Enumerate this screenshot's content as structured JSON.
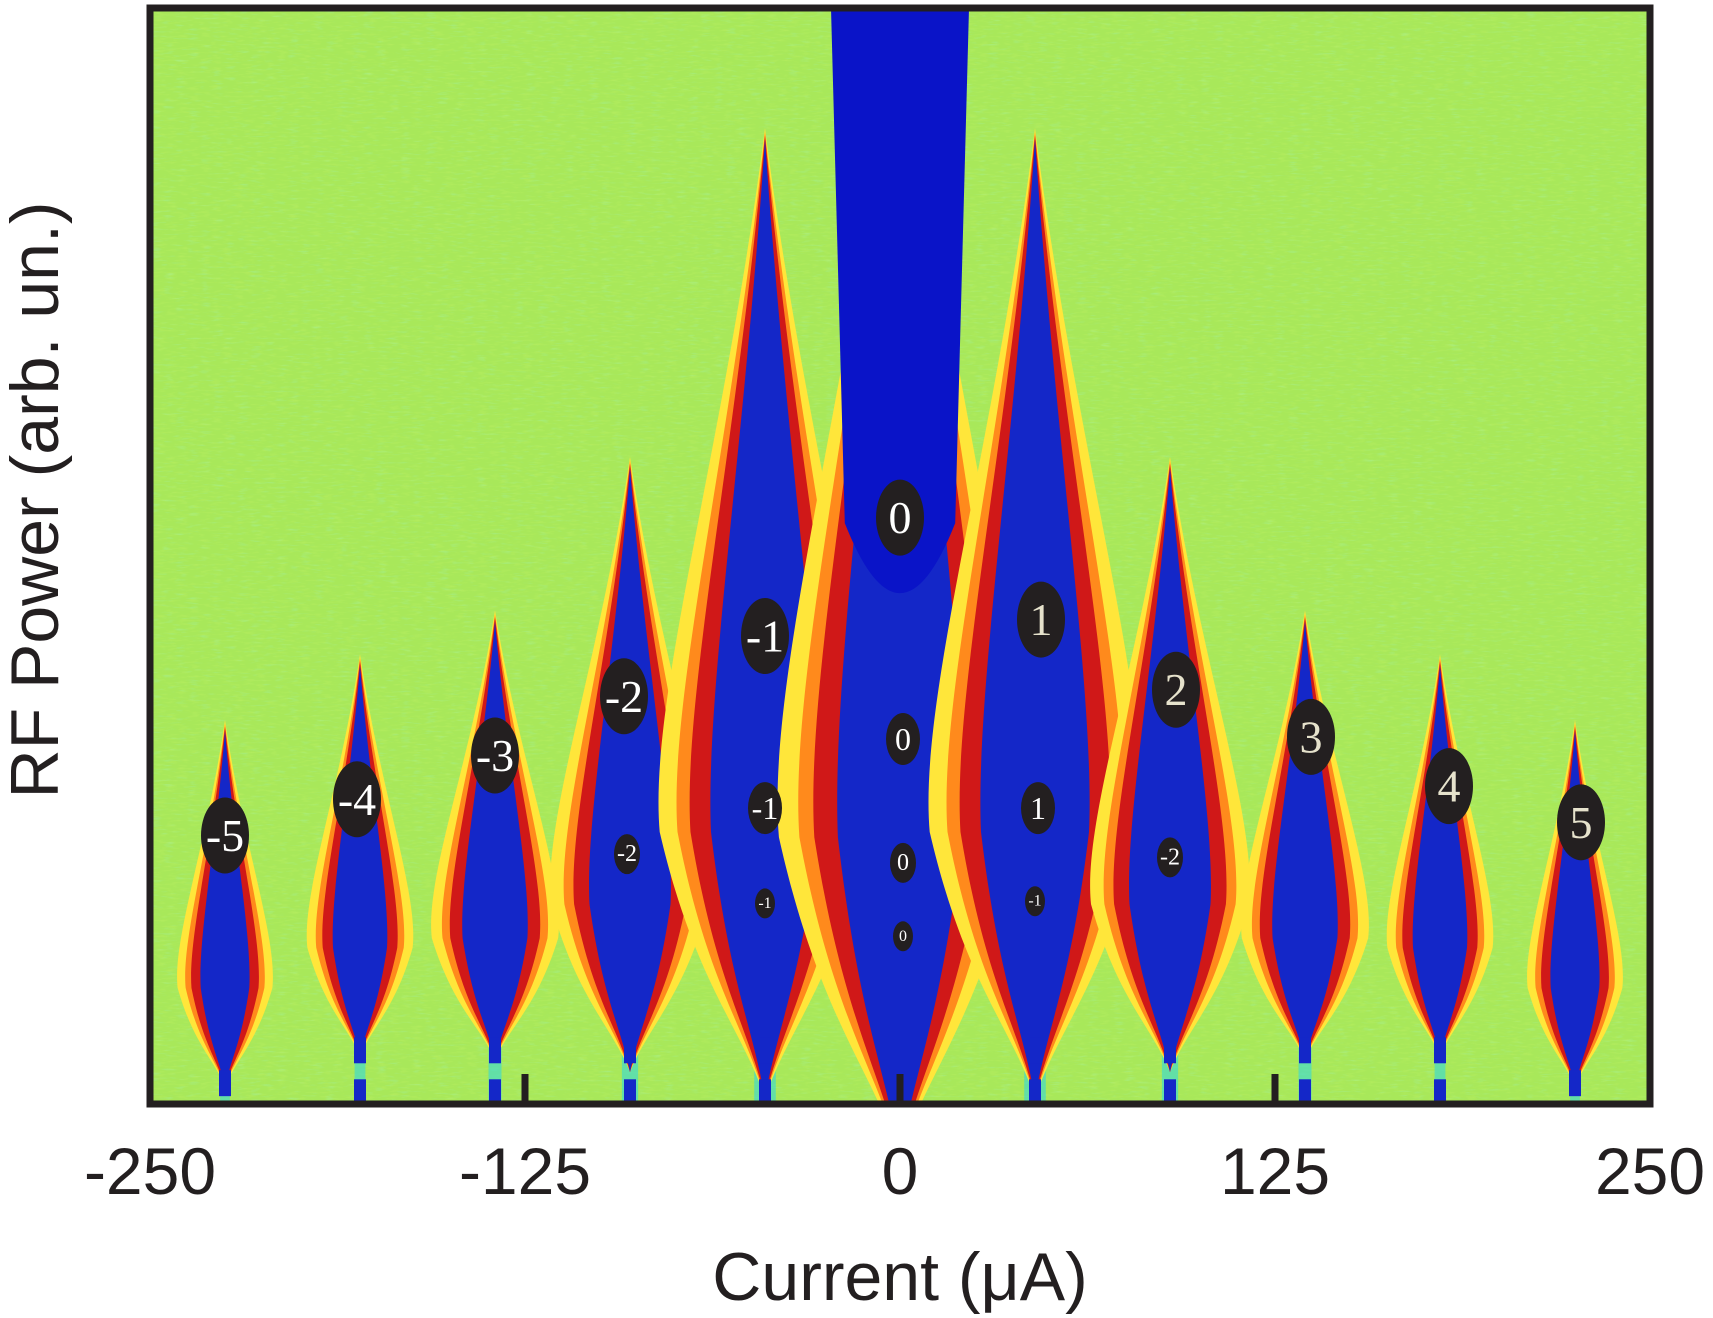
{
  "chart_data": {
    "type": "heatmap",
    "title": "",
    "xlabel": "Current (μA)",
    "ylabel": "RF Power (arb. un.)",
    "xlim": [
      -250,
      250
    ],
    "ylim": [
      0,
      1
    ],
    "x_ticks": [
      -250,
      -125,
      0,
      125,
      250
    ],
    "x_tick_labels": [
      "-250",
      "-125",
      "0",
      "125",
      "250"
    ],
    "y_ticks": [],
    "grid": false,
    "colormap": "jet",
    "background_color": "#a8e85a",
    "frame_color": "#231f20",
    "shapiro_step_spacing_uA": 45,
    "lobes": [
      {
        "step": -5,
        "x": -225,
        "base": 0.04,
        "top": 0.34,
        "width": 9
      },
      {
        "step": -4,
        "x": -180,
        "base": 0.07,
        "top": 0.4,
        "width": 10
      },
      {
        "step": -3,
        "x": -135,
        "base": 0.07,
        "top": 0.44,
        "width": 12
      },
      {
        "step": -2,
        "x": -90,
        "base": 0.07,
        "top": 0.58,
        "width": 15
      },
      {
        "step": -1,
        "x": -45,
        "base": 0.07,
        "top": 0.88,
        "width": 20
      },
      {
        "step": 0,
        "x": 0,
        "base": 0.03,
        "top": 1.0,
        "width": 23
      },
      {
        "step": 1,
        "x": 45,
        "base": 0.07,
        "top": 0.88,
        "width": 20
      },
      {
        "step": 2,
        "x": 90,
        "base": 0.07,
        "top": 0.58,
        "width": 15
      },
      {
        "step": 3,
        "x": 135,
        "base": 0.07,
        "top": 0.44,
        "width": 12
      },
      {
        "step": 4,
        "x": 180,
        "base": 0.07,
        "top": 0.4,
        "width": 10
      },
      {
        "step": 5,
        "x": 225,
        "base": 0.04,
        "top": 0.34,
        "width": 9
      }
    ],
    "annotations": [
      {
        "label": "-5",
        "x": -225,
        "y": 0.245,
        "size": "large",
        "text_color": "#ffffff"
      },
      {
        "label": "-4",
        "x": -181,
        "y": 0.278,
        "size": "large",
        "text_color": "#ffffff"
      },
      {
        "label": "-3",
        "x": -135,
        "y": 0.318,
        "size": "large",
        "text_color": "#ffffff"
      },
      {
        "label": "-2",
        "x": -92,
        "y": 0.372,
        "size": "large",
        "text_color": "#ffffff"
      },
      {
        "label": "-1",
        "x": -45,
        "y": 0.427,
        "size": "large",
        "text_color": "#ffffff"
      },
      {
        "label": "0",
        "x": 0,
        "y": 0.535,
        "size": "large",
        "text_color": "#ffffff"
      },
      {
        "label": "1",
        "x": 47,
        "y": 0.442,
        "size": "large",
        "text_color": "#e6e2cc"
      },
      {
        "label": "2",
        "x": 92,
        "y": 0.378,
        "size": "large",
        "text_color": "#e6e2cc"
      },
      {
        "label": "3",
        "x": 137,
        "y": 0.335,
        "size": "large",
        "text_color": "#e6e2cc"
      },
      {
        "label": "4",
        "x": 183,
        "y": 0.29,
        "size": "large",
        "text_color": "#e6e2cc"
      },
      {
        "label": "5",
        "x": 227,
        "y": 0.257,
        "size": "large",
        "text_color": "#e6e2cc"
      },
      {
        "label": "0",
        "x": 1,
        "y": 0.333,
        "size": "medium",
        "text_color": "#ffffff"
      },
      {
        "label": "-1",
        "x": -45,
        "y": 0.27,
        "size": "medium",
        "text_color": "#ffffff"
      },
      {
        "label": "1",
        "x": 46,
        "y": 0.27,
        "size": "medium",
        "text_color": "#ffffff"
      },
      {
        "label": "-2",
        "x": -91,
        "y": 0.228,
        "size": "small",
        "text_color": "#ffffff"
      },
      {
        "label": "-2",
        "x": 90,
        "y": 0.225,
        "size": "small",
        "text_color": "#ffffff"
      },
      {
        "label": "0",
        "x": 1,
        "y": 0.22,
        "size": "small",
        "text_color": "#ffffff"
      },
      {
        "label": "-1",
        "x": -45,
        "y": 0.183,
        "size": "tiny",
        "text_color": "#ffffff"
      },
      {
        "label": "-1",
        "x": 45,
        "y": 0.185,
        "size": "tiny",
        "text_color": "#ffffff"
      },
      {
        "label": "0",
        "x": 1,
        "y": 0.153,
        "size": "tiny",
        "text_color": "#ffffff"
      }
    ]
  }
}
